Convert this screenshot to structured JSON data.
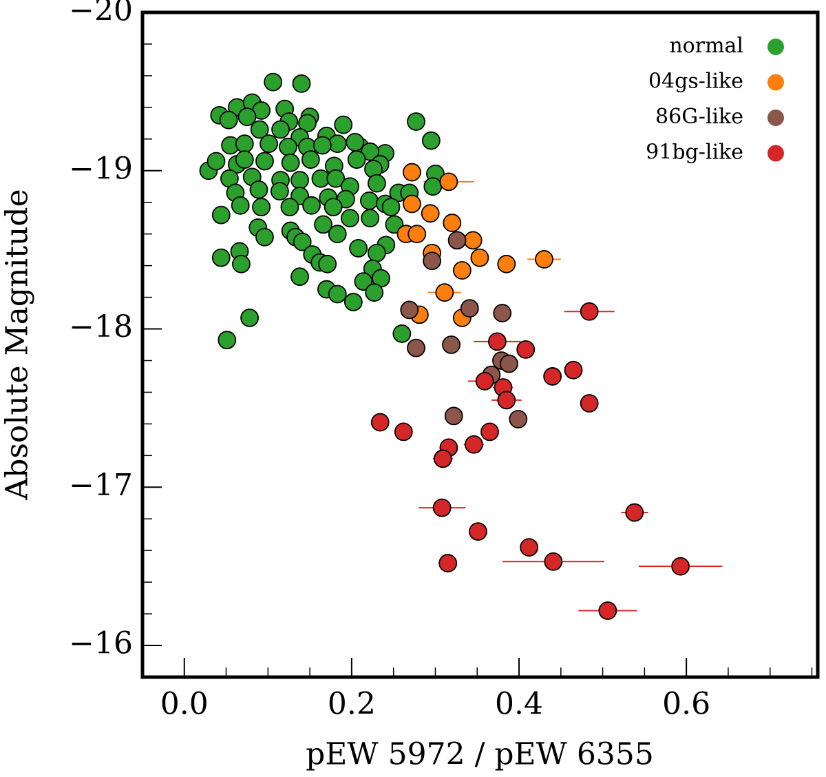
{
  "chart_data": {
    "type": "scatter",
    "xlabel": "pEW 5972 / pEW 6355",
    "ylabel": "Absolute Magnitude",
    "xlim": [
      -0.05,
      0.757
    ],
    "ylim": [
      -15.8,
      -20
    ],
    "xticks": [
      {
        "value": 0,
        "label": "0.0"
      },
      0.2,
      0.4,
      0.6
    ],
    "yticks": [
      {
        "value": -20,
        "label": "−20"
      },
      {
        "value": -19,
        "label": "−19"
      },
      {
        "value": -18,
        "label": "−18"
      },
      {
        "value": -17,
        "label": "−17"
      },
      {
        "value": -16,
        "label": "−16"
      }
    ],
    "xminorticks": [
      0.05,
      0.1,
      0.15,
      0.25,
      0.3,
      0.35,
      0.45,
      0.5,
      0.55,
      0.65,
      0.7,
      0.75
    ],
    "yminorticks": [
      -19.8,
      -19.6,
      -19.4,
      -19.2,
      -18.8,
      -18.6,
      -18.4,
      -18.2,
      -17.8,
      -17.6,
      -17.4,
      -17.2,
      -16.8,
      -16.6,
      -16.4,
      -16.2,
      -15.8
    ],
    "legend": "upper right",
    "series": [
      {
        "name": "normal",
        "color": "#2ca02c",
        "x": [
          0.106,
          0.14,
          0.042,
          0.063,
          0.081,
          0.092,
          0.12,
          0.075,
          0.053,
          0.15,
          0.125,
          0.147,
          0.19,
          0.277,
          0.295,
          0.09,
          0.115,
          0.138,
          0.17,
          0.183,
          0.21,
          0.24,
          0.055,
          0.072,
          0.101,
          0.124,
          0.147,
          0.165,
          0.204,
          0.222,
          0.234,
          0.029,
          0.038,
          0.063,
          0.072,
          0.096,
          0.127,
          0.151,
          0.179,
          0.206,
          0.226,
          0.3,
          0.054,
          0.081,
          0.115,
          0.138,
          0.163,
          0.181,
          0.198,
          0.23,
          0.256,
          0.269,
          0.297,
          0.061,
          0.089,
          0.114,
          0.138,
          0.172,
          0.193,
          0.221,
          0.24,
          0.067,
          0.092,
          0.126,
          0.152,
          0.178,
          0.198,
          0.222,
          0.247,
          0.251,
          0.044,
          0.088,
          0.096,
          0.127,
          0.133,
          0.141,
          0.166,
          0.183,
          0.153,
          0.162,
          0.171,
          0.208,
          0.241,
          0.23,
          0.044,
          0.066,
          0.068,
          0.138,
          0.225,
          0.235,
          0.214,
          0.17,
          0.183,
          0.227,
          0.202,
          0.078,
          0.051,
          0.26
        ],
        "values": [
          -19.56,
          -19.55,
          -19.35,
          -19.4,
          -19.43,
          -19.38,
          -19.39,
          -19.34,
          -19.32,
          -19.34,
          -19.31,
          -19.3,
          -19.29,
          -19.31,
          -19.19,
          -19.26,
          -19.26,
          -19.21,
          -19.22,
          -19.17,
          -19.15,
          -19.11,
          -19.16,
          -19.17,
          -19.17,
          -19.15,
          -19.15,
          -19.16,
          -19.18,
          -19.12,
          -19.04,
          -19.0,
          -19.06,
          -19.04,
          -19.07,
          -19.06,
          -19.05,
          -19.07,
          -19.03,
          -19.07,
          -19.01,
          -18.98,
          -18.95,
          -18.96,
          -18.94,
          -18.94,
          -18.95,
          -18.95,
          -18.9,
          -18.92,
          -18.86,
          -18.86,
          -18.9,
          -18.86,
          -18.88,
          -18.87,
          -18.84,
          -18.83,
          -18.82,
          -18.81,
          -18.79,
          -18.78,
          -18.77,
          -18.77,
          -18.78,
          -18.77,
          -18.7,
          -18.7,
          -18.77,
          -18.66,
          -18.72,
          -18.64,
          -18.58,
          -18.62,
          -18.58,
          -18.55,
          -18.66,
          -18.6,
          -18.47,
          -18.42,
          -18.41,
          -18.51,
          -18.53,
          -18.48,
          -18.45,
          -18.49,
          -18.41,
          -18.33,
          -18.38,
          -18.32,
          -18.3,
          -18.25,
          -18.22,
          -18.23,
          -18.17,
          -18.07,
          -17.93,
          -17.97
        ]
      },
      {
        "name": "04gs-like",
        "color": "#ff7f0e",
        "x": [
          0.272,
          0.316,
          0.272,
          0.294,
          0.32,
          0.265,
          0.278,
          0.345,
          0.296,
          0.353,
          0.332,
          0.385,
          0.43,
          0.311,
          0.281,
          0.332
        ],
        "values": [
          -18.99,
          -18.93,
          -18.79,
          -18.73,
          -18.67,
          -18.6,
          -18.6,
          -18.56,
          -18.48,
          -18.45,
          -18.37,
          -18.41,
          -18.44,
          -18.23,
          -18.09,
          -18.07
        ],
        "xerr": [
          0.01,
          0.03,
          0.01,
          0.01,
          0.01,
          0.01,
          0.01,
          0.01,
          0.01,
          0.01,
          0.01,
          0.01,
          0.02,
          0.02,
          0.01,
          0.01
        ]
      },
      {
        "name": "86G-like",
        "color": "#8c564b",
        "x": [
          0.326,
          0.296,
          0.269,
          0.341,
          0.38,
          0.277,
          0.319,
          0.379,
          0.388,
          0.367,
          0.322,
          0.399
        ],
        "values": [
          -18.56,
          -18.43,
          -18.12,
          -18.13,
          -18.1,
          -17.88,
          -17.9,
          -17.8,
          -17.78,
          -17.71,
          -17.45,
          -17.43
        ]
      },
      {
        "name": "91bg-like",
        "color": "#d62728",
        "x": [
          0.484,
          0.234,
          0.262,
          0.316,
          0.309,
          0.346,
          0.365,
          0.359,
          0.374,
          0.381,
          0.385,
          0.408,
          0.44,
          0.465,
          0.484,
          0.308,
          0.351,
          0.315,
          0.412,
          0.441,
          0.538,
          0.593,
          0.506
        ],
        "values": [
          -18.11,
          -17.41,
          -17.35,
          -17.25,
          -17.18,
          -17.27,
          -17.35,
          -17.67,
          -17.92,
          -17.63,
          -17.55,
          -17.87,
          -17.7,
          -17.74,
          -17.53,
          -16.87,
          -16.72,
          -16.52,
          -16.62,
          -16.53,
          -16.84,
          -16.5,
          -16.22
        ],
        "xerr": [
          0.03,
          0.01,
          0.01,
          0.01,
          0.012,
          0.012,
          0.01,
          0.02,
          0.028,
          0.012,
          0.018,
          0.01,
          0.01,
          0.01,
          0.01,
          0.028,
          0.01,
          0.01,
          0.01,
          0.061,
          0.016,
          0.05,
          0.035
        ]
      }
    ]
  }
}
